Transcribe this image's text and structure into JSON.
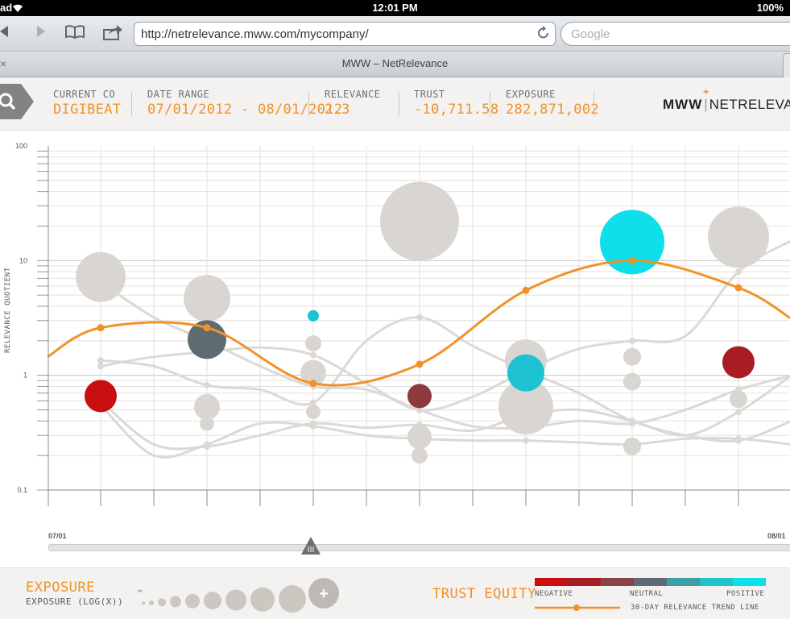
{
  "status_bar": {
    "carrier": "ad",
    "time": "12:01 PM",
    "battery": "100%"
  },
  "browser": {
    "url": "http://netrelevance.mww.com/mycompany/",
    "search_placeholder": "Google",
    "tab_title": "MWW – NetRelevance",
    "tab_close": "×",
    "icons": [
      "back-arrow-icon",
      "forward-arrow-icon",
      "bookmarks-icon",
      "share-icon",
      "reload-icon",
      "wifi-icon"
    ]
  },
  "header": {
    "current_co": {
      "label": "CURRENT CO",
      "value": "DIGIBEAT"
    },
    "date_range": {
      "label": "DATE RANGE",
      "value": "07/01/2012 - 08/01/2012"
    },
    "relevance": {
      "label": "RELEVANCE",
      "value": "2.3"
    },
    "trust": {
      "label": "TRUST",
      "value": "-10,711.58"
    },
    "exposure": {
      "label": "EXPOSURE",
      "value": "282,871,002"
    },
    "brand_left": "MWW",
    "brand_sep": "|",
    "brand_right": "NETRELEVANCE",
    "brand_plus": "+"
  },
  "chart_data": {
    "type": "scatter",
    "ylabel": "RELEVANCE QUOTIENT",
    "yscale": "log",
    "ylim": [
      0.1,
      100
    ],
    "y_ticks": [
      100,
      10,
      1,
      0.1
    ],
    "y_tick_labels": [
      "100",
      "10",
      "1",
      "0.1"
    ],
    "x_ticks": [
      "07/10",
      "07/11",
      "07/12",
      "07/13",
      "07/14",
      "07/15",
      "07/16"
    ],
    "grid": true,
    "trend_line": {
      "name": "30-DAY RELEVANCE TREND LINE",
      "color": "#f29226",
      "x": [
        "07/09.5",
        "07/10",
        "07/11",
        "07/12",
        "07/13",
        "07/14",
        "07/15",
        "07/16",
        "07/16.5"
      ],
      "points": [
        {
          "x": "07/10",
          "y": 2.6
        },
        {
          "x": "07/11",
          "y": 2.6
        },
        {
          "x": "07/12",
          "y": 0.85
        },
        {
          "x": "07/13",
          "y": 1.25
        },
        {
          "x": "07/14",
          "y": 5.5
        },
        {
          "x": "07/15",
          "y": 10
        },
        {
          "x": "07/16",
          "y": 5.8
        }
      ]
    },
    "bubbles": [
      {
        "x": "07/10",
        "y": 7.2,
        "r": 31,
        "color": "#d9d6d2"
      },
      {
        "x": "07/10",
        "y": 0.58,
        "r": 12,
        "color": "#d9d6d2"
      },
      {
        "x": "07/10",
        "y": 0.66,
        "r": 20,
        "color": "#c80f0f"
      },
      {
        "x": "07/11",
        "y": 4.7,
        "r": 29,
        "color": "#d9d6d2"
      },
      {
        "x": "07/11",
        "y": 2.05,
        "r": 24,
        "color": "#5e6b70"
      },
      {
        "x": "07/11",
        "y": 0.53,
        "r": 16,
        "color": "#d9d6d2"
      },
      {
        "x": "07/11",
        "y": 0.38,
        "r": 9,
        "color": "#d9d6d2"
      },
      {
        "x": "07/12",
        "y": 3.3,
        "r": 7,
        "color": "#16c6d6"
      },
      {
        "x": "07/12",
        "y": 1.9,
        "r": 10,
        "color": "#d9d6d2"
      },
      {
        "x": "07/12",
        "y": 1.05,
        "r": 16,
        "color": "#d9d6d2"
      },
      {
        "x": "07/12",
        "y": 0.48,
        "r": 9,
        "color": "#d9d6d2"
      },
      {
        "x": "07/13",
        "y": 22,
        "r": 49,
        "color": "#d9d6d2"
      },
      {
        "x": "07/13",
        "y": 0.66,
        "r": 15,
        "color": "#8b3b3e"
      },
      {
        "x": "07/13",
        "y": 0.29,
        "r": 15,
        "color": "#d9d6d2"
      },
      {
        "x": "07/13",
        "y": 0.2,
        "r": 10,
        "color": "#d9d6d2"
      },
      {
        "x": "07/14",
        "y": 1.35,
        "r": 26,
        "color": "#d9d6d2"
      },
      {
        "x": "07/14",
        "y": 0.53,
        "r": 34,
        "color": "#d9d6d2"
      },
      {
        "x": "07/14",
        "y": 1.05,
        "r": 23,
        "color": "#1fc2d0"
      },
      {
        "x": "07/15",
        "y": 14.5,
        "r": 40,
        "color": "#0de0ea"
      },
      {
        "x": "07/15",
        "y": 1.45,
        "r": 11,
        "color": "#d9d6d2"
      },
      {
        "x": "07/15",
        "y": 0.88,
        "r": 11,
        "color": "#d9d6d2"
      },
      {
        "x": "07/15",
        "y": 0.24,
        "r": 11,
        "color": "#d9d6d2"
      },
      {
        "x": "07/16",
        "y": 16,
        "r": 38,
        "color": "#d9d6d2"
      },
      {
        "x": "07/16",
        "y": 1.3,
        "r": 20,
        "color": "#a81d22"
      },
      {
        "x": "07/16",
        "y": 0.62,
        "r": 11,
        "color": "#d9d6d2"
      }
    ],
    "background_lines": [
      [
        [
          0,
          6.5
        ],
        [
          0.5,
          3.2
        ],
        [
          1,
          2.0
        ],
        [
          1.5,
          1.2
        ],
        [
          2,
          0.8
        ],
        [
          2.5,
          0.75
        ],
        [
          3,
          0.5
        ],
        [
          3.5,
          0.36
        ],
        [
          4,
          0.35
        ],
        [
          4.5,
          0.4
        ],
        [
          5,
          0.38
        ],
        [
          5.5,
          0.5
        ],
        [
          6,
          0.75
        ],
        [
          6.5,
          1.0
        ]
      ],
      [
        [
          0,
          1.2
        ],
        [
          0.5,
          1.45
        ],
        [
          1,
          1.6
        ],
        [
          1.5,
          1.75
        ],
        [
          2,
          1.5
        ],
        [
          2.5,
          0.85
        ],
        [
          3,
          0.5
        ],
        [
          3.5,
          0.65
        ],
        [
          4,
          1.1
        ],
        [
          4.5,
          1.7
        ],
        [
          5,
          2.0
        ],
        [
          5.5,
          2.2
        ],
        [
          6,
          8.0
        ],
        [
          6.5,
          15
        ]
      ],
      [
        [
          0,
          1.35
        ],
        [
          0.5,
          1.2
        ],
        [
          1,
          0.82
        ],
        [
          1.5,
          0.75
        ],
        [
          2,
          0.58
        ],
        [
          2.5,
          2.0
        ],
        [
          3,
          3.2
        ],
        [
          3.5,
          1.8
        ],
        [
          4,
          1.1
        ],
        [
          4.5,
          0.7
        ],
        [
          5,
          0.4
        ],
        [
          5.5,
          0.3
        ],
        [
          6,
          0.27
        ],
        [
          6.5,
          0.4
        ]
      ],
      [
        [
          0,
          0.55
        ],
        [
          0.5,
          0.2
        ],
        [
          1,
          0.25
        ],
        [
          1.5,
          0.38
        ],
        [
          2,
          0.36
        ],
        [
          2.5,
          0.3
        ],
        [
          3,
          0.28
        ],
        [
          3.5,
          0.27
        ],
        [
          4,
          0.27
        ],
        [
          4.5,
          0.26
        ],
        [
          5,
          0.25
        ],
        [
          5.5,
          0.28
        ],
        [
          6,
          0.28
        ],
        [
          6.5,
          0.25
        ]
      ],
      [
        [
          0,
          0.6
        ],
        [
          0.5,
          0.25
        ],
        [
          1,
          0.24
        ],
        [
          1.5,
          0.3
        ],
        [
          2,
          0.38
        ],
        [
          2.5,
          0.35
        ],
        [
          3,
          0.37
        ],
        [
          3.5,
          0.33
        ],
        [
          4,
          0.45
        ],
        [
          4.5,
          0.5
        ],
        [
          5,
          0.4
        ],
        [
          5.5,
          0.3
        ],
        [
          6,
          0.48
        ],
        [
          6.5,
          1.0
        ]
      ]
    ]
  },
  "timeline": {
    "start": "07/01",
    "end": "08/01",
    "position": 0.35
  },
  "legend": {
    "exposure_title": "EXPOSURE",
    "exposure_sub": "EXPOSURE (LOG(X))",
    "minus": "-",
    "plus": "+",
    "exposure_sizes": [
      2,
      3,
      5,
      7,
      9,
      11,
      13,
      15,
      17
    ],
    "trust_title": "TRUST EQUITY",
    "trust_colors": [
      "#c80f0f",
      "#a81d22",
      "#8b4346",
      "#5e6b70",
      "#3e9ea6",
      "#21c2cc",
      "#0de0ea"
    ],
    "negative": "NEGATIVE",
    "neutral": "NEUTRAL",
    "positive": "POSITIVE",
    "trend_label": "30-DAY RELEVANCE TREND LINE"
  }
}
